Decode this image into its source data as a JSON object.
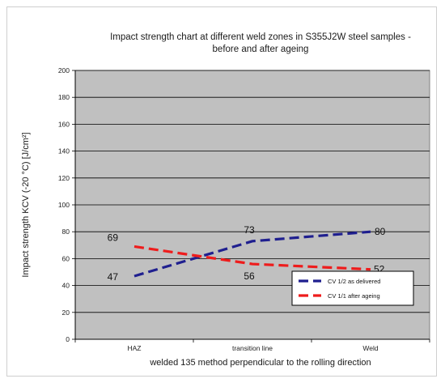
{
  "chart_data": {
    "type": "line",
    "title": [
      "Impact strength chart at different weld  zones in S355J2W steel samples -",
      "before and after ageing"
    ],
    "xlabel": "welded 135 method perpendicular to the rolling direction",
    "ylabel": "Impact strength KCV (-20 °C)  [J/cm²]",
    "categories": [
      "HAZ",
      "transition line",
      "Weld"
    ],
    "ylim": [
      0,
      200
    ],
    "yticks": [
      0,
      20,
      40,
      60,
      80,
      100,
      120,
      140,
      160,
      180,
      200
    ],
    "grid": true,
    "legend_position": "lower-right",
    "series": [
      {
        "name": "CV 1/2 as delivered",
        "values": [
          47,
          73,
          80
        ],
        "color": "#1f1f8f",
        "dash": "dashed"
      },
      {
        "name": "CV 1/1 after ageing",
        "values": [
          69,
          56,
          52
        ],
        "color": "#ee1c1c",
        "dash": "dashed"
      }
    ],
    "data_labels": [
      {
        "series": 0,
        "index": 0,
        "text": "47"
      },
      {
        "series": 0,
        "index": 1,
        "text": "73"
      },
      {
        "series": 0,
        "index": 2,
        "text": "80"
      },
      {
        "series": 1,
        "index": 0,
        "text": "69"
      },
      {
        "series": 1,
        "index": 1,
        "text": "56"
      },
      {
        "series": 1,
        "index": 2,
        "text": "52"
      }
    ],
    "plot_background": "#c0c0c0"
  }
}
